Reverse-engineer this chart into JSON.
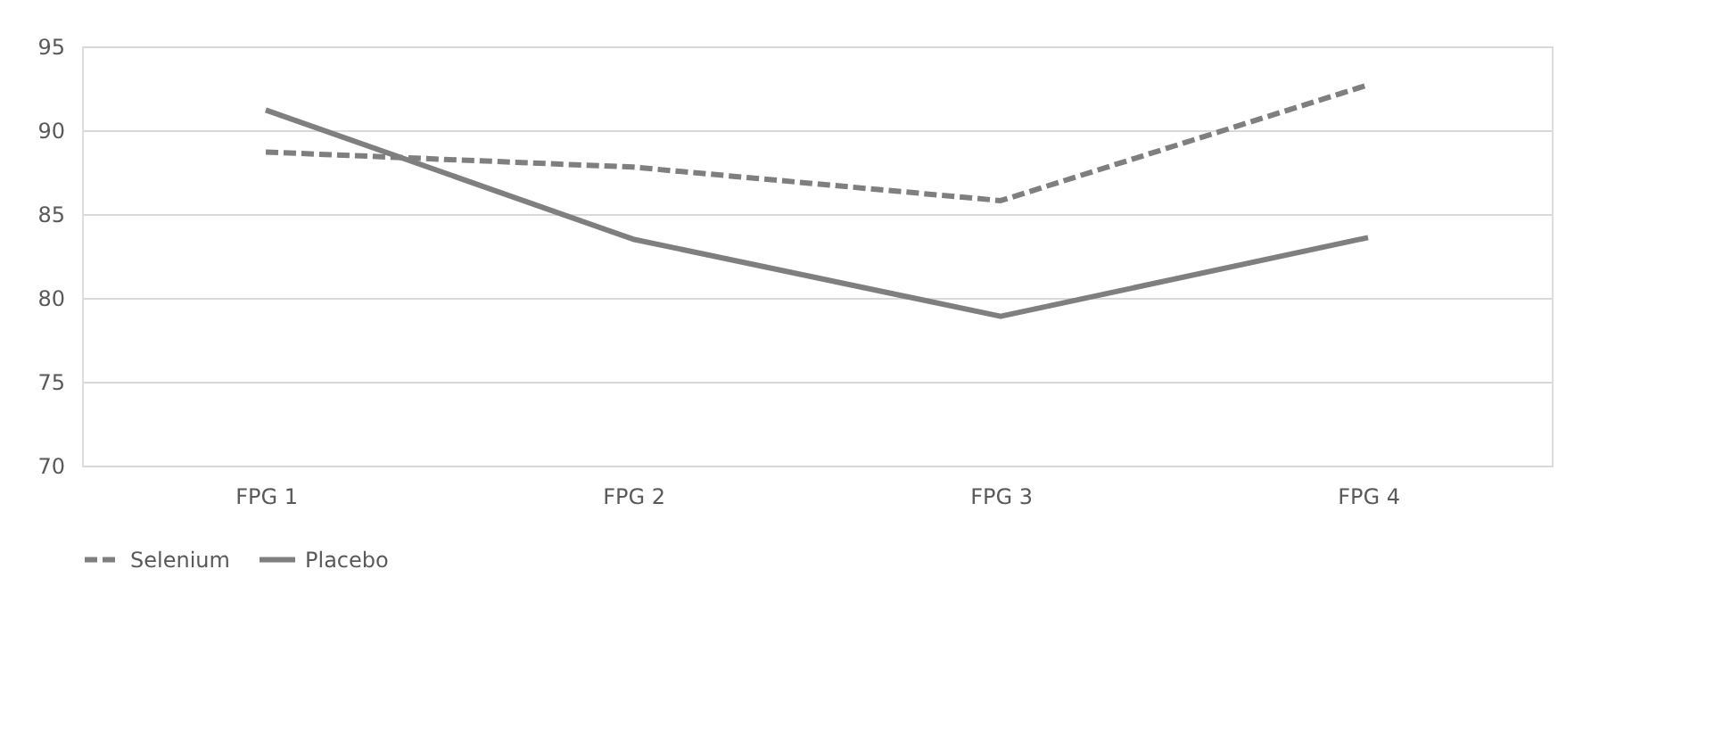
{
  "chart_data": {
    "type": "line",
    "categories": [
      "FPG 1",
      "FPG 2",
      "FPG 3",
      "FPG 4"
    ],
    "series": [
      {
        "name": "Selenium",
        "color": "#7f7f7f",
        "line_style": "dashed",
        "values": [
          88.7,
          87.8,
          85.8,
          92.7
        ]
      },
      {
        "name": "Placebo",
        "color": "#7f7f7f",
        "line_style": "solid",
        "values": [
          91.2,
          83.5,
          78.9,
          83.6
        ]
      }
    ],
    "ylim": [
      70,
      95
    ],
    "yticks": [
      70,
      75,
      80,
      85,
      90,
      95
    ],
    "grid": "y",
    "legend": "bottom",
    "marker": "none"
  }
}
